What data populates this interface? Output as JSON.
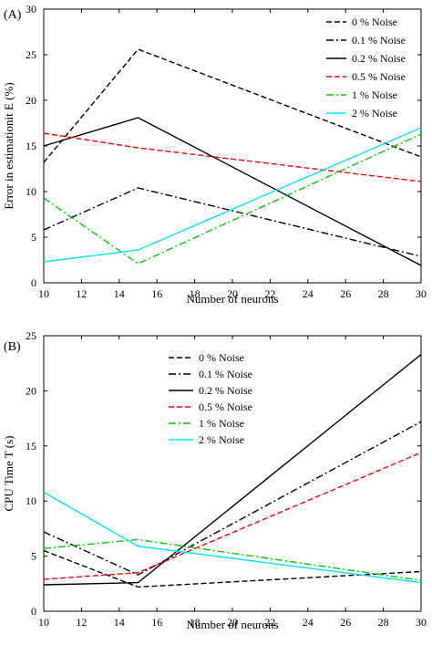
{
  "chart_data": [
    {
      "type": "line",
      "panel_label": "(A)",
      "xlabel": "Number of neurons",
      "ylabel": "Error in estimationit E (%)",
      "xlim": [
        10,
        30
      ],
      "ylim": [
        0,
        30
      ],
      "xticks": [
        10,
        12,
        14,
        16,
        18,
        20,
        22,
        24,
        26,
        28,
        30
      ],
      "yticks": [
        0,
        5,
        10,
        15,
        20,
        25,
        30
      ],
      "legend_position": "top-right",
      "x": [
        10,
        15,
        30
      ],
      "series": [
        {
          "name": "0 % Noise",
          "values": [
            13.2,
            25.6,
            13.8
          ],
          "color": "#000000",
          "dash": "6,3"
        },
        {
          "name": "0.1 % Noise",
          "values": [
            5.8,
            10.4,
            2.9
          ],
          "color": "#000000",
          "dash": "8,3,2,3"
        },
        {
          "name": "0.2 % Noise",
          "values": [
            15.0,
            18.1,
            1.9
          ],
          "color": "#000000",
          "dash": ""
        },
        {
          "name": "0.5 % Noise",
          "values": [
            16.4,
            14.8,
            11.1
          ],
          "color": "#ff0000",
          "dash": "6,3"
        },
        {
          "name": "1 % Noise",
          "values": [
            9.3,
            2.1,
            16.3
          ],
          "color": "#00cc00",
          "dash": "8,3,2,3"
        },
        {
          "name": "2 % Noise",
          "values": [
            2.3,
            3.6,
            17.0
          ],
          "color": "#00e5ff",
          "dash": ""
        }
      ]
    },
    {
      "type": "line",
      "panel_label": "(B)",
      "xlabel": "Number of neurons",
      "ylabel": "CPU Time T (s)",
      "xlim": [
        10,
        30
      ],
      "ylim": [
        0,
        25
      ],
      "xticks": [
        10,
        12,
        14,
        16,
        18,
        20,
        22,
        24,
        26,
        28,
        30
      ],
      "yticks": [
        0,
        5,
        10,
        15,
        20,
        25
      ],
      "legend_position": "top-left",
      "x": [
        10,
        15,
        30
      ],
      "series": [
        {
          "name": "0 % Noise",
          "values": [
            5.5,
            2.2,
            3.6
          ],
          "color": "#000000",
          "dash": "6,3"
        },
        {
          "name": "0.1 % Noise",
          "values": [
            7.2,
            3.3,
            17.2
          ],
          "color": "#000000",
          "dash": "8,3,2,3"
        },
        {
          "name": "0.2 % Noise",
          "values": [
            2.4,
            2.6,
            23.3
          ],
          "color": "#000000",
          "dash": ""
        },
        {
          "name": "0.5 % Noise",
          "values": [
            2.9,
            3.5,
            14.4
          ],
          "color": "#ff0000",
          "dash": "6,3"
        },
        {
          "name": "1 % Noise",
          "values": [
            5.7,
            6.5,
            2.8
          ],
          "color": "#00cc00",
          "dash": "8,3,2,3"
        },
        {
          "name": "2 % Noise",
          "values": [
            10.8,
            5.9,
            2.6
          ],
          "color": "#00e5ff",
          "dash": ""
        }
      ]
    }
  ]
}
